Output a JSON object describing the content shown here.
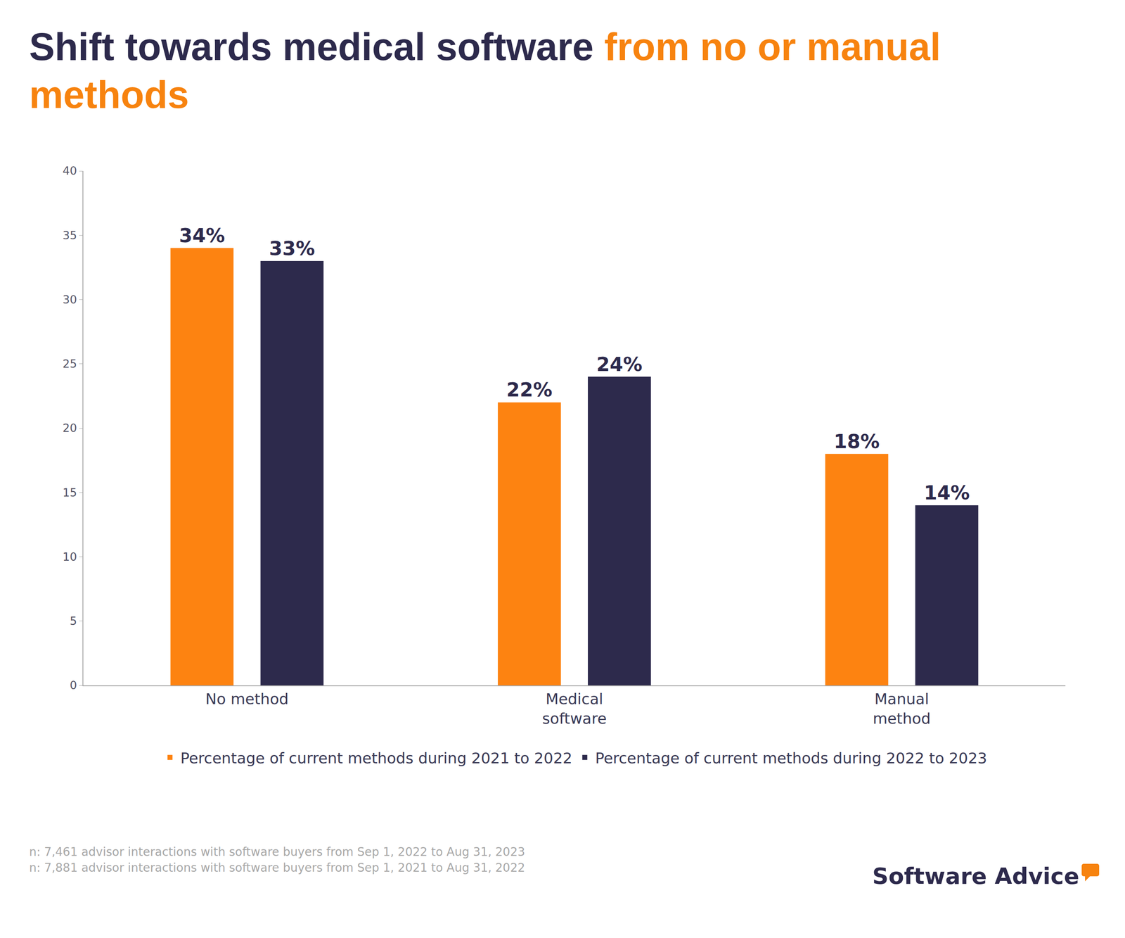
{
  "chart_data": {
    "type": "bar",
    "title": [
      {
        "text": "Shift towards medical software",
        "color": "#2d2a4c"
      },
      {
        "text": "from no or manual methods",
        "color": "#f7830f"
      }
    ],
    "categories": [
      "No method",
      "Medical\nsoftware",
      "Manual\nmethod"
    ],
    "series": [
      {
        "name": "Percentage of current methods during 2021 to 2022",
        "color": "#fd8311",
        "values": [
          34,
          22,
          18
        ],
        "value_labels": [
          "34%",
          "22%",
          "18%"
        ]
      },
      {
        "name": "Percentage of current methods during 2022 to 2023",
        "color": "#2d2a4c",
        "values": [
          33,
          24,
          14
        ],
        "value_labels": [
          "33%",
          "24%",
          "14%"
        ]
      }
    ],
    "ylim": [
      0,
      40
    ],
    "yticks": [
      0,
      5,
      10,
      15,
      20,
      25,
      30,
      35,
      40
    ],
    "grid": false,
    "legend": "bottom",
    "data_labels": true,
    "notes": [
      "n: 7,461 advisor interactions with software buyers from Sep 1, 2022 to Aug 31, 2023",
      "n: 7,881 advisor interactions with software buyers from Sep 1, 2021 to Aug 31, 2022"
    ],
    "brand": "Software Advice"
  }
}
